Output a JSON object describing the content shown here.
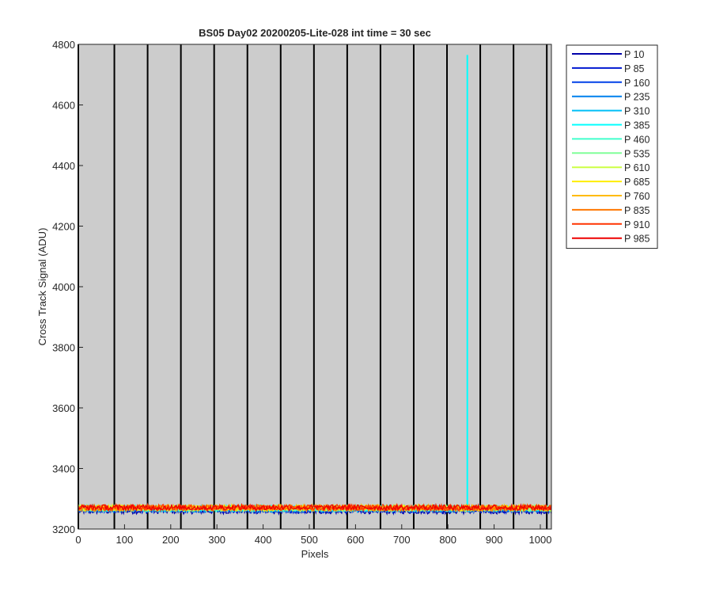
{
  "chart_data": {
    "type": "line",
    "title": "BS05 Day02 20200205-Lite-028 int time = 30 sec",
    "xlabel": "Pixels",
    "ylabel": "Cross Track Signal (ADU)",
    "xlim": [
      0,
      1024
    ],
    "ylim": [
      3200,
      4800
    ],
    "xticks": [
      0,
      100,
      200,
      300,
      400,
      500,
      600,
      700,
      800,
      900,
      1000
    ],
    "yticks": [
      3200,
      3400,
      3600,
      3800,
      4000,
      4200,
      4400,
      4600,
      4800
    ],
    "background": "#cccccc",
    "grid": false,
    "legend_position": "outside-top-right",
    "column_boundaries": [
      0,
      78,
      150,
      222,
      294,
      366,
      438,
      510,
      582,
      654,
      726,
      798,
      870,
      942,
      1014
    ],
    "series": [
      {
        "name": "P 10",
        "color": "#0000aa",
        "baseline": 3260,
        "spread": 10
      },
      {
        "name": "P 85",
        "color": "#0018d0",
        "baseline": 3263,
        "spread": 10
      },
      {
        "name": "P 160",
        "color": "#0040e8",
        "baseline": 3265,
        "spread": 10
      },
      {
        "name": "P 235",
        "color": "#0080ee",
        "baseline": 3266,
        "spread": 10
      },
      {
        "name": "P 310",
        "color": "#00bff7",
        "baseline": 3267,
        "spread": 10
      },
      {
        "name": "P 385",
        "color": "#00ffff",
        "baseline": 3268,
        "spread": 10,
        "spike": {
          "x": 842,
          "y": 4765
        }
      },
      {
        "name": "P 460",
        "color": "#40ffcc",
        "baseline": 3268,
        "spread": 10
      },
      {
        "name": "P 535",
        "color": "#80ff99",
        "baseline": 3269,
        "spread": 10
      },
      {
        "name": "P 610",
        "color": "#ccff44",
        "baseline": 3269,
        "spread": 10
      },
      {
        "name": "P 685",
        "color": "#ffee00",
        "baseline": 3270,
        "spread": 10
      },
      {
        "name": "P 760",
        "color": "#ffbb00",
        "baseline": 3270,
        "spread": 10
      },
      {
        "name": "P 835",
        "color": "#ff7700",
        "baseline": 3270,
        "spread": 10
      },
      {
        "name": "P 910",
        "color": "#ff3300",
        "baseline": 3271,
        "spread": 10
      },
      {
        "name": "P 985",
        "color": "#ee0000",
        "baseline": 3271,
        "spread": 9
      }
    ]
  }
}
